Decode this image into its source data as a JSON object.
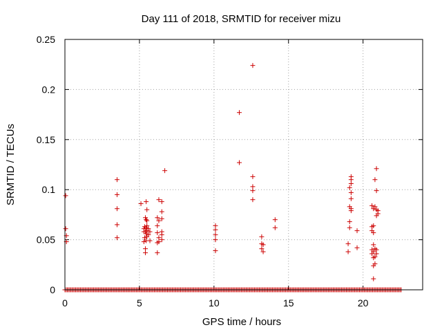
{
  "chart_data": {
    "type": "scatter",
    "title": "Day 111 of 2018, SRMTID for receiver mizu",
    "xlabel": "GPS time / hours",
    "ylabel": "SRMTID / TECUs",
    "xlim": [
      0,
      24
    ],
    "ylim": [
      0,
      0.25
    ],
    "xticks": [
      0,
      5,
      10,
      15,
      20
    ],
    "xtick_labels": [
      "0",
      "5",
      "10",
      "15",
      "20"
    ],
    "yticks": [
      0,
      0.05,
      0.1,
      0.15,
      0.2,
      0.25
    ],
    "ytick_labels": [
      "0",
      "0.05",
      "0.1",
      "0.15",
      "0.2",
      "0.25"
    ],
    "grid": true,
    "marker": "+",
    "color": "#cc0000",
    "zero_baseline_ranges": [
      [
        0,
        22.6
      ]
    ],
    "series": [
      {
        "name": "SRMTID",
        "points": [
          [
            0.05,
            0.094
          ],
          [
            0.05,
            0.061
          ],
          [
            0.1,
            0.054
          ],
          [
            0.1,
            0.048
          ],
          [
            3.5,
            0.11
          ],
          [
            3.5,
            0.095
          ],
          [
            3.5,
            0.081
          ],
          [
            3.5,
            0.065
          ],
          [
            3.5,
            0.052
          ],
          [
            5.1,
            0.086
          ],
          [
            5.3,
            0.061
          ],
          [
            5.3,
            0.058
          ],
          [
            5.3,
            0.048
          ],
          [
            5.35,
            0.063
          ],
          [
            5.35,
            0.052
          ],
          [
            5.4,
            0.072
          ],
          [
            5.4,
            0.058
          ],
          [
            5.4,
            0.041
          ],
          [
            5.4,
            0.037
          ],
          [
            5.45,
            0.088
          ],
          [
            5.45,
            0.07
          ],
          [
            5.45,
            0.062
          ],
          [
            5.45,
            0.056
          ],
          [
            5.45,
            0.049
          ],
          [
            5.5,
            0.08
          ],
          [
            5.5,
            0.069
          ],
          [
            5.5,
            0.064
          ],
          [
            5.5,
            0.059
          ],
          [
            5.5,
            0.053
          ],
          [
            5.6,
            0.061
          ],
          [
            5.6,
            0.055
          ],
          [
            5.7,
            0.058
          ],
          [
            5.7,
            0.049
          ],
          [
            6.2,
            0.072
          ],
          [
            6.2,
            0.064
          ],
          [
            6.2,
            0.057
          ],
          [
            6.2,
            0.047
          ],
          [
            6.2,
            0.037
          ],
          [
            6.3,
            0.09
          ],
          [
            6.3,
            0.069
          ],
          [
            6.3,
            0.052
          ],
          [
            6.3,
            0.048
          ],
          [
            6.5,
            0.088
          ],
          [
            6.5,
            0.078
          ],
          [
            6.5,
            0.071
          ],
          [
            6.5,
            0.058
          ],
          [
            6.5,
            0.055
          ],
          [
            6.5,
            0.05
          ],
          [
            6.7,
            0.119
          ],
          [
            10.1,
            0.064
          ],
          [
            10.1,
            0.06
          ],
          [
            10.1,
            0.055
          ],
          [
            10.1,
            0.05
          ],
          [
            10.1,
            0.039
          ],
          [
            11.7,
            0.177
          ],
          [
            11.7,
            0.127
          ],
          [
            12.6,
            0.224
          ],
          [
            12.6,
            0.113
          ],
          [
            12.6,
            0.103
          ],
          [
            12.6,
            0.099
          ],
          [
            12.6,
            0.09
          ],
          [
            13.2,
            0.053
          ],
          [
            13.2,
            0.046
          ],
          [
            13.2,
            0.041
          ],
          [
            13.3,
            0.045
          ],
          [
            13.3,
            0.038
          ],
          [
            14.1,
            0.07
          ],
          [
            14.1,
            0.062
          ],
          [
            19.0,
            0.046
          ],
          [
            19.0,
            0.038
          ],
          [
            19.1,
            0.102
          ],
          [
            19.1,
            0.083
          ],
          [
            19.1,
            0.068
          ],
          [
            19.1,
            0.062
          ],
          [
            19.2,
            0.113
          ],
          [
            19.2,
            0.11
          ],
          [
            19.2,
            0.106
          ],
          [
            19.2,
            0.097
          ],
          [
            19.2,
            0.091
          ],
          [
            19.2,
            0.081
          ],
          [
            19.2,
            0.079
          ],
          [
            19.6,
            0.059
          ],
          [
            19.6,
            0.042
          ],
          [
            20.6,
            0.084
          ],
          [
            20.6,
            0.063
          ],
          [
            20.6,
            0.059
          ],
          [
            20.6,
            0.04
          ],
          [
            20.6,
            0.036
          ],
          [
            20.7,
            0.081
          ],
          [
            20.7,
            0.064
          ],
          [
            20.7,
            0.057
          ],
          [
            20.7,
            0.045
          ],
          [
            20.7,
            0.038
          ],
          [
            20.7,
            0.032
          ],
          [
            20.7,
            0.024
          ],
          [
            20.7,
            0.011
          ],
          [
            20.8,
            0.11
          ],
          [
            20.8,
            0.083
          ],
          [
            20.8,
            0.041
          ],
          [
            20.8,
            0.033
          ],
          [
            20.8,
            0.026
          ],
          [
            20.9,
            0.121
          ],
          [
            20.9,
            0.099
          ],
          [
            20.9,
            0.08
          ],
          [
            20.9,
            0.074
          ],
          [
            20.9,
            0.04
          ],
          [
            20.9,
            0.036
          ],
          [
            21.0,
            0.079
          ],
          [
            21.0,
            0.076
          ]
        ]
      }
    ]
  }
}
